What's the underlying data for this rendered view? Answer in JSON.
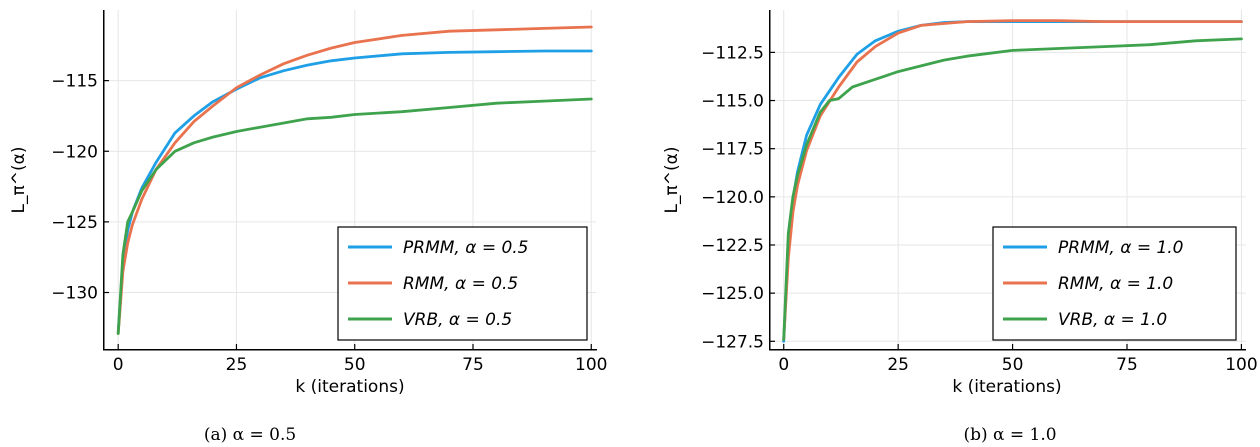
{
  "chart_data": [
    {
      "type": "line",
      "caption": "(a) α = 0.5",
      "xlabel": "k (iterations)",
      "ylabel": "L_π^(α)",
      "xlim": [
        -3,
        101
      ],
      "ylim": [
        -134,
        -110
      ],
      "xticks": [
        0,
        25,
        50,
        75,
        100
      ],
      "yticks": [
        -130,
        -125,
        -120,
        -115
      ],
      "grid": true,
      "legend_position": "bottom-right",
      "series": [
        {
          "name": "PRMM, α = 0.5",
          "color": "#1f9fe6",
          "x": [
            0,
            1,
            2,
            3,
            5,
            8,
            12,
            16,
            20,
            25,
            30,
            35,
            40,
            45,
            50,
            60,
            70,
            80,
            90,
            100
          ],
          "y": [
            -132.8,
            -127.8,
            -125.6,
            -124.3,
            -122.6,
            -120.8,
            -118.7,
            -117.5,
            -116.5,
            -115.6,
            -114.8,
            -114.3,
            -113.9,
            -113.6,
            -113.4,
            -113.1,
            -113.0,
            -112.95,
            -112.9,
            -112.9
          ]
        },
        {
          "name": "RMM, α = 0.5",
          "color": "#e8734e",
          "x": [
            0,
            1,
            2,
            3,
            5,
            8,
            12,
            16,
            20,
            25,
            30,
            35,
            40,
            45,
            50,
            60,
            70,
            80,
            90,
            100
          ],
          "y": [
            -132.9,
            -128.5,
            -126.5,
            -125.2,
            -123.4,
            -121.3,
            -119.4,
            -117.9,
            -116.8,
            -115.5,
            -114.6,
            -113.8,
            -113.2,
            -112.7,
            -112.3,
            -111.8,
            -111.5,
            -111.4,
            -111.3,
            -111.2
          ]
        },
        {
          "name": "VRB, α = 0.5",
          "color": "#3fa34d",
          "x": [
            0,
            1,
            2,
            3,
            5,
            8,
            12,
            16,
            20,
            25,
            30,
            35,
            40,
            45,
            50,
            60,
            70,
            80,
            90,
            100
          ],
          "y": [
            -132.9,
            -127.3,
            -125.0,
            -124.3,
            -122.8,
            -121.3,
            -120.0,
            -119.4,
            -119.0,
            -118.6,
            -118.3,
            -118.0,
            -117.7,
            -117.6,
            -117.4,
            -117.2,
            -116.9,
            -116.6,
            -116.45,
            -116.3
          ]
        }
      ]
    },
    {
      "type": "line",
      "caption": "(b) α = 1.0",
      "xlabel": "k (iterations)",
      "ylabel": "L_π^(α)",
      "xlim": [
        -3,
        101
      ],
      "ylim": [
        -127.9,
        -110.3
      ],
      "xticks": [
        0,
        25,
        50,
        75,
        100
      ],
      "yticks": [
        -127.5,
        -125.0,
        -122.5,
        -120.0,
        -117.5,
        -115.0,
        -112.5
      ],
      "grid": true,
      "legend_position": "bottom-right",
      "series": [
        {
          "name": "PRMM, α = 1.0",
          "color": "#1f9fe6",
          "x": [
            0,
            1,
            2,
            3,
            5,
            8,
            12,
            16,
            20,
            25,
            30,
            35,
            40,
            50,
            60,
            70,
            80,
            90,
            100
          ],
          "y": [
            -127.5,
            -122.6,
            -120.1,
            -118.7,
            -116.8,
            -115.2,
            -113.8,
            -112.6,
            -111.9,
            -111.4,
            -111.1,
            -110.95,
            -110.9,
            -110.9,
            -110.9,
            -110.9,
            -110.9,
            -110.9,
            -110.9
          ]
        },
        {
          "name": "RMM, α = 1.0",
          "color": "#e8734e",
          "x": [
            0,
            1,
            2,
            3,
            5,
            8,
            12,
            16,
            20,
            25,
            30,
            35,
            40,
            50,
            60,
            70,
            80,
            90,
            100
          ],
          "y": [
            -127.4,
            -123.2,
            -120.8,
            -119.4,
            -117.6,
            -115.8,
            -114.3,
            -113.0,
            -112.2,
            -111.5,
            -111.1,
            -111.0,
            -110.9,
            -110.85,
            -110.85,
            -110.9,
            -110.9,
            -110.9,
            -110.9
          ]
        },
        {
          "name": "VRB, α = 1.0",
          "color": "#3fa34d",
          "x": [
            0,
            1,
            2,
            3,
            5,
            8,
            10,
            12,
            15,
            20,
            25,
            30,
            35,
            40,
            50,
            60,
            70,
            80,
            90,
            100
          ],
          "y": [
            -127.4,
            -121.9,
            -120.0,
            -118.9,
            -117.3,
            -115.6,
            -115.0,
            -114.9,
            -114.3,
            -113.9,
            -113.5,
            -113.2,
            -112.9,
            -112.7,
            -112.4,
            -112.3,
            -112.2,
            -112.1,
            -111.9,
            -111.8
          ]
        }
      ]
    }
  ]
}
